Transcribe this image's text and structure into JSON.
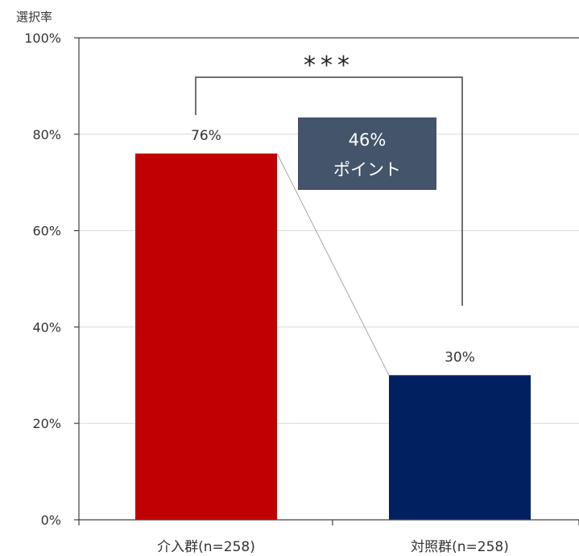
{
  "chart_data": {
    "type": "bar",
    "ylabel": "選択率",
    "ylim": [
      0,
      100
    ],
    "yticks": [
      "0%",
      "20%",
      "40%",
      "60%",
      "80%",
      "100%"
    ],
    "ytick_values": [
      0,
      20,
      40,
      60,
      80,
      100
    ],
    "grid": true,
    "categories": [
      "介入群(n=258)",
      "対照群(n=258)"
    ],
    "values": [
      76,
      30
    ],
    "data_labels": [
      "76%",
      "30%"
    ],
    "bar_colors": [
      "#c00000",
      "#002060"
    ],
    "significance": "***",
    "callout": {
      "line1": "46%",
      "line2": "ポイント",
      "color": "#44546a"
    },
    "connector_color": "#a6a6a6",
    "grid_color": "#d9d9d9"
  }
}
